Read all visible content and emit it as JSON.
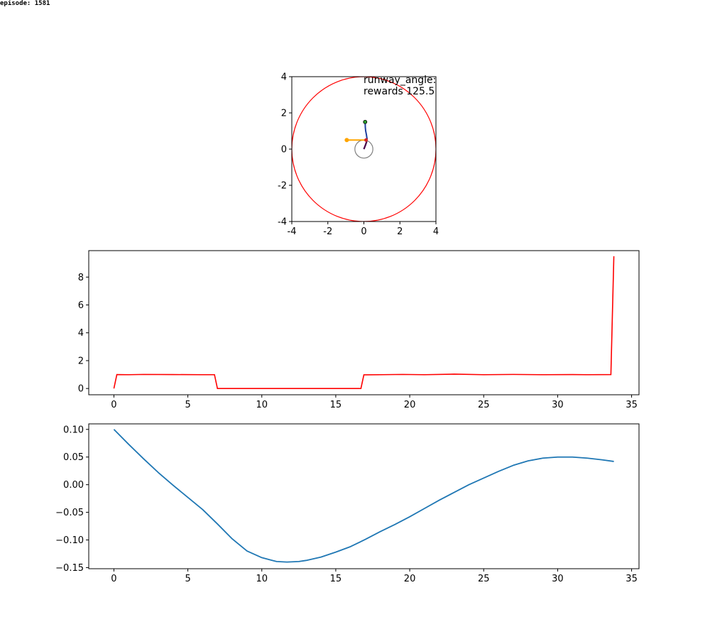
{
  "episode_label": "episode: 1581",
  "colors": {
    "circle": "#ff0000",
    "reward": "#ff0000",
    "angle": "#1f77b4",
    "marker_orange": "#ffa500",
    "marker_green": "#2ca02c",
    "ring": "#808080"
  },
  "chart_data": [
    {
      "type": "scatter",
      "annotations": [
        "runway_angle:",
        "rewards 125.5"
      ],
      "xlim": [
        -4,
        4
      ],
      "ylim": [
        -4,
        4
      ],
      "xticks": [
        "-4",
        "-2",
        "0",
        "2",
        "4"
      ],
      "yticks": [
        "-4",
        "-2",
        "0",
        "2",
        "4"
      ],
      "elements": {
        "boundary_circle": {
          "cx": 0,
          "cy": 0,
          "r": 4,
          "color": "red"
        },
        "center_ring": {
          "cx": 0,
          "cy": 0,
          "r": 0.5,
          "color": "gray"
        },
        "path": {
          "x": [
            0.0,
            0.08,
            0.15,
            0.17,
            0.14,
            0.1,
            0.08,
            0.07
          ],
          "y": [
            0.0,
            0.2,
            0.4,
            0.6,
            0.8,
            1.0,
            1.2,
            1.5
          ]
        },
        "green_marker": {
          "x": 0.07,
          "y": 1.5
        },
        "orange_marker": {
          "x": -0.95,
          "y": 0.5
        },
        "red_marker": {
          "x": 0.12,
          "y": 0.5
        }
      }
    },
    {
      "type": "line",
      "xlim": [
        -1.7,
        35.5
      ],
      "ylim": [
        -0.45,
        9.9
      ],
      "xticks": [
        0,
        5,
        10,
        15,
        20,
        25,
        30,
        35
      ],
      "yticks": [
        0,
        2,
        4,
        6,
        8
      ],
      "series": [
        {
          "color": "red",
          "x": [
            0,
            0.2,
            1,
            2,
            4,
            6,
            6.8,
            7.0,
            8,
            10,
            12,
            14,
            16,
            16.7,
            16.9,
            18,
            19.5,
            21,
            23,
            25,
            27,
            29,
            31,
            32,
            33.6,
            33.8
          ],
          "y": [
            0,
            1.0,
            0.99,
            1.01,
            1.0,
            0.99,
            0.99,
            0.0,
            0.0,
            0.0,
            0.0,
            0.0,
            0.0,
            0.0,
            0.98,
            0.99,
            1.01,
            0.99,
            1.03,
            0.99,
            1.01,
            0.99,
            1.0,
            0.99,
            1.0,
            9.5
          ]
        }
      ]
    },
    {
      "type": "line",
      "xlim": [
        -1.7,
        35.5
      ],
      "ylim": [
        -0.152,
        0.11
      ],
      "xticks": [
        0,
        5,
        10,
        15,
        20,
        25,
        30,
        35
      ],
      "yticks": [
        "0.10",
        "0.05",
        "0.00",
        "−0.05",
        "−0.10",
        "−0.15"
      ],
      "series": [
        {
          "color": "#1f77b4",
          "x": [
            0,
            1,
            2,
            3,
            4,
            5,
            6,
            7,
            8,
            9,
            10,
            11,
            11.7,
            12.5,
            13,
            14,
            15,
            16,
            17,
            18,
            19,
            20,
            21,
            22,
            23,
            24,
            25,
            26,
            27,
            28,
            29,
            30,
            31,
            32,
            33,
            33.8
          ],
          "y": [
            0.1,
            0.073,
            0.047,
            0.022,
            -0.001,
            -0.023,
            -0.045,
            -0.071,
            -0.098,
            -0.12,
            -0.132,
            -0.139,
            -0.14,
            -0.139,
            -0.137,
            -0.131,
            -0.122,
            -0.112,
            -0.099,
            -0.085,
            -0.072,
            -0.058,
            -0.043,
            -0.028,
            -0.014,
            0.0,
            0.012,
            0.024,
            0.035,
            0.043,
            0.048,
            0.05,
            0.05,
            0.048,
            0.045,
            0.042
          ]
        }
      ]
    }
  ]
}
